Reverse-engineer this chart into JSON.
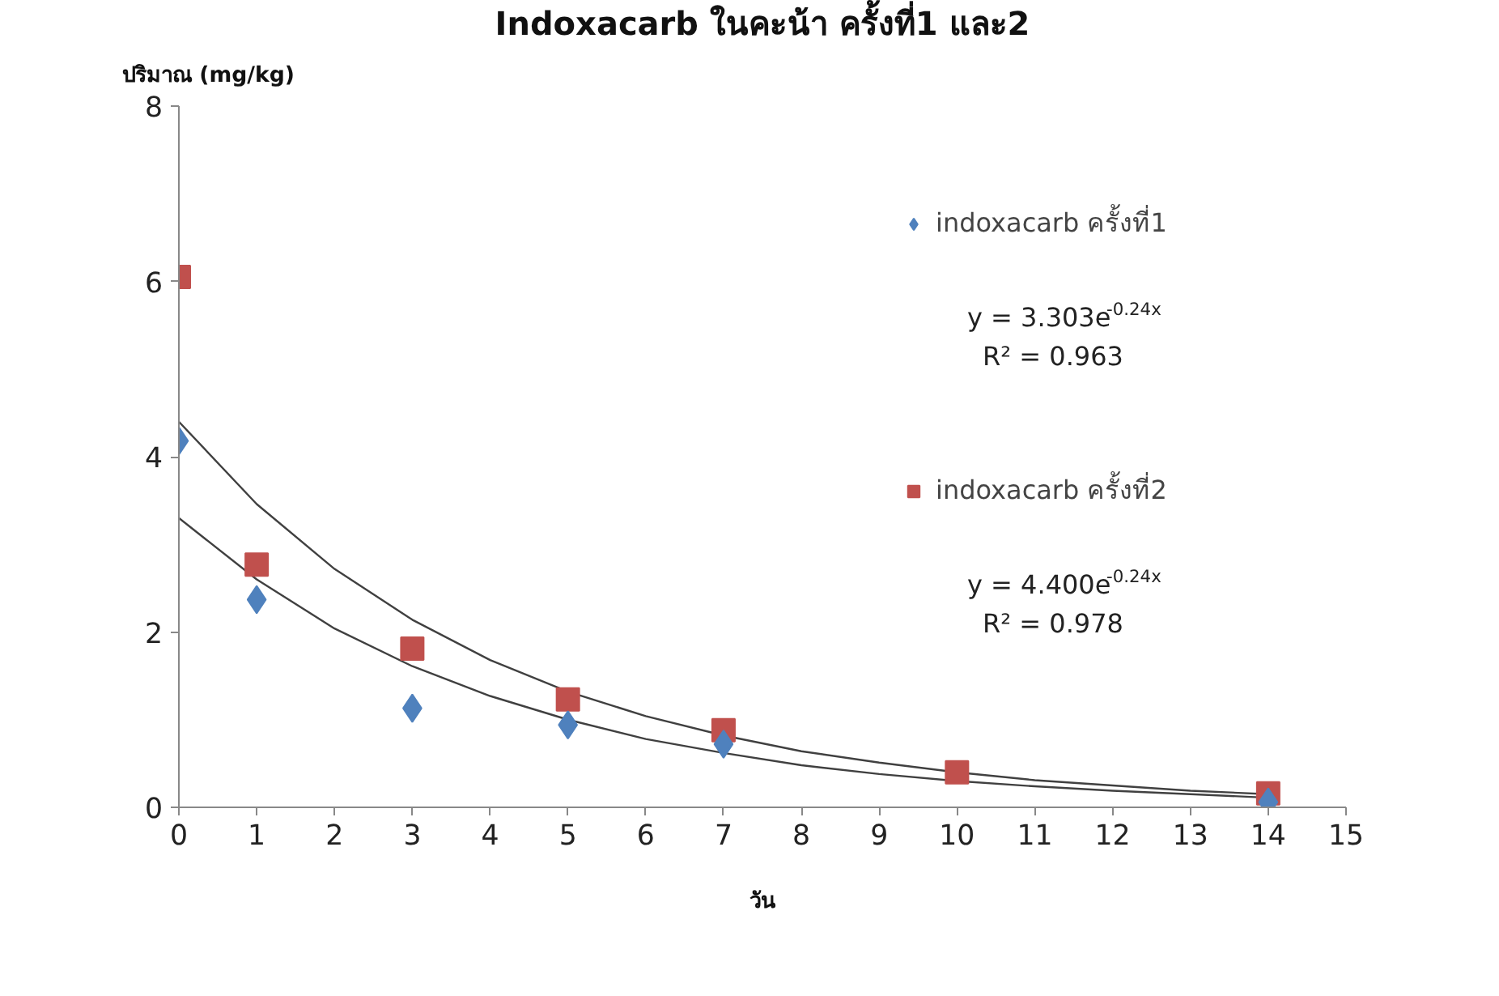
{
  "chart_data": {
    "type": "scatter",
    "title": "Indoxacarb ในคะน้า ครั้งที่1 และ2",
    "xlabel": "วัน",
    "ylabel": "ปริมาณ (mg/kg)",
    "x": [
      0,
      1,
      3,
      5,
      7,
      10,
      14
    ],
    "series": [
      {
        "name": "indoxacarb ครั้งที่1",
        "color": "#4f81bd",
        "marker": "diamond",
        "values": [
          4.18,
          2.37,
          1.13,
          0.94,
          0.72,
          null,
          0.06
        ]
      },
      {
        "name": "indoxacarb ครั้งที่2",
        "color": "#c0504d",
        "marker": "square",
        "values": [
          6.05,
          2.77,
          1.81,
          1.23,
          0.88,
          0.4,
          0.16
        ]
      },
      {
        "type": "line",
        "color": "#404040",
        "x": [
          0,
          1,
          2,
          3,
          4,
          5,
          6,
          7,
          8,
          9,
          10,
          11,
          12,
          13,
          14
        ],
        "values": [
          3.3,
          2.6,
          2.04,
          1.61,
          1.27,
          1.0,
          0.78,
          0.62,
          0.48,
          0.38,
          0.3,
          0.24,
          0.19,
          0.15,
          0.11
        ]
      },
      {
        "type": "line",
        "color": "#404040",
        "x": [
          0,
          1,
          2,
          3,
          4,
          5,
          6,
          7,
          8,
          9,
          10,
          11,
          12,
          13,
          14
        ],
        "values": [
          4.4,
          3.46,
          2.72,
          2.14,
          1.68,
          1.32,
          1.04,
          0.82,
          0.64,
          0.51,
          0.4,
          0.31,
          0.25,
          0.19,
          0.15
        ]
      }
    ],
    "annotations": [
      "y = 3.303e$^{-0.24x}$",
      "R² = 0.963",
      "y = 4.400e$^{-0.24x}$",
      "R² = 0.978"
    ],
    "xlim": [
      0,
      15
    ],
    "xticks": [
      0,
      1,
      2,
      3,
      4,
      5,
      6,
      7,
      8,
      9,
      10,
      11,
      12,
      13,
      14,
      15
    ],
    "ylim": [
      0,
      8
    ],
    "yticks": [
      0,
      2,
      4,
      6,
      8
    ],
    "grid": false,
    "legend": "right"
  }
}
